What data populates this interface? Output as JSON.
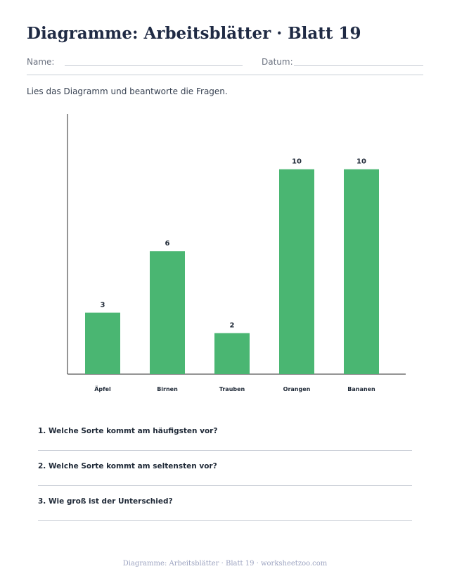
{
  "header": {
    "title": "Diagramme: Arbeitsblätter · Blatt 19",
    "name_label": "Name:",
    "date_label": "Datum:"
  },
  "instruction": "Lies das Diagramm und beantworte die Fragen.",
  "chart_data": {
    "type": "bar",
    "categories": [
      "Äpfel",
      "Birnen",
      "Trauben",
      "Orangen",
      "Bananen"
    ],
    "values": [
      3,
      6,
      2,
      10,
      10
    ],
    "title": "",
    "xlabel": "",
    "ylabel": "",
    "ylim": [
      0,
      12.7
    ],
    "bar_color": "#4ab672",
    "grid": false,
    "data_labels": true
  },
  "questions": [
    {
      "text": "1. Welche Sorte kommt am häufigsten vor?"
    },
    {
      "text": "2. Welche Sorte kommt am seltensten vor?"
    },
    {
      "text": "3. Wie groß ist der Unterschied?"
    }
  ],
  "footer": "Diagramme: Arbeitsblätter · Blatt 19 · worksheetzoo.com"
}
